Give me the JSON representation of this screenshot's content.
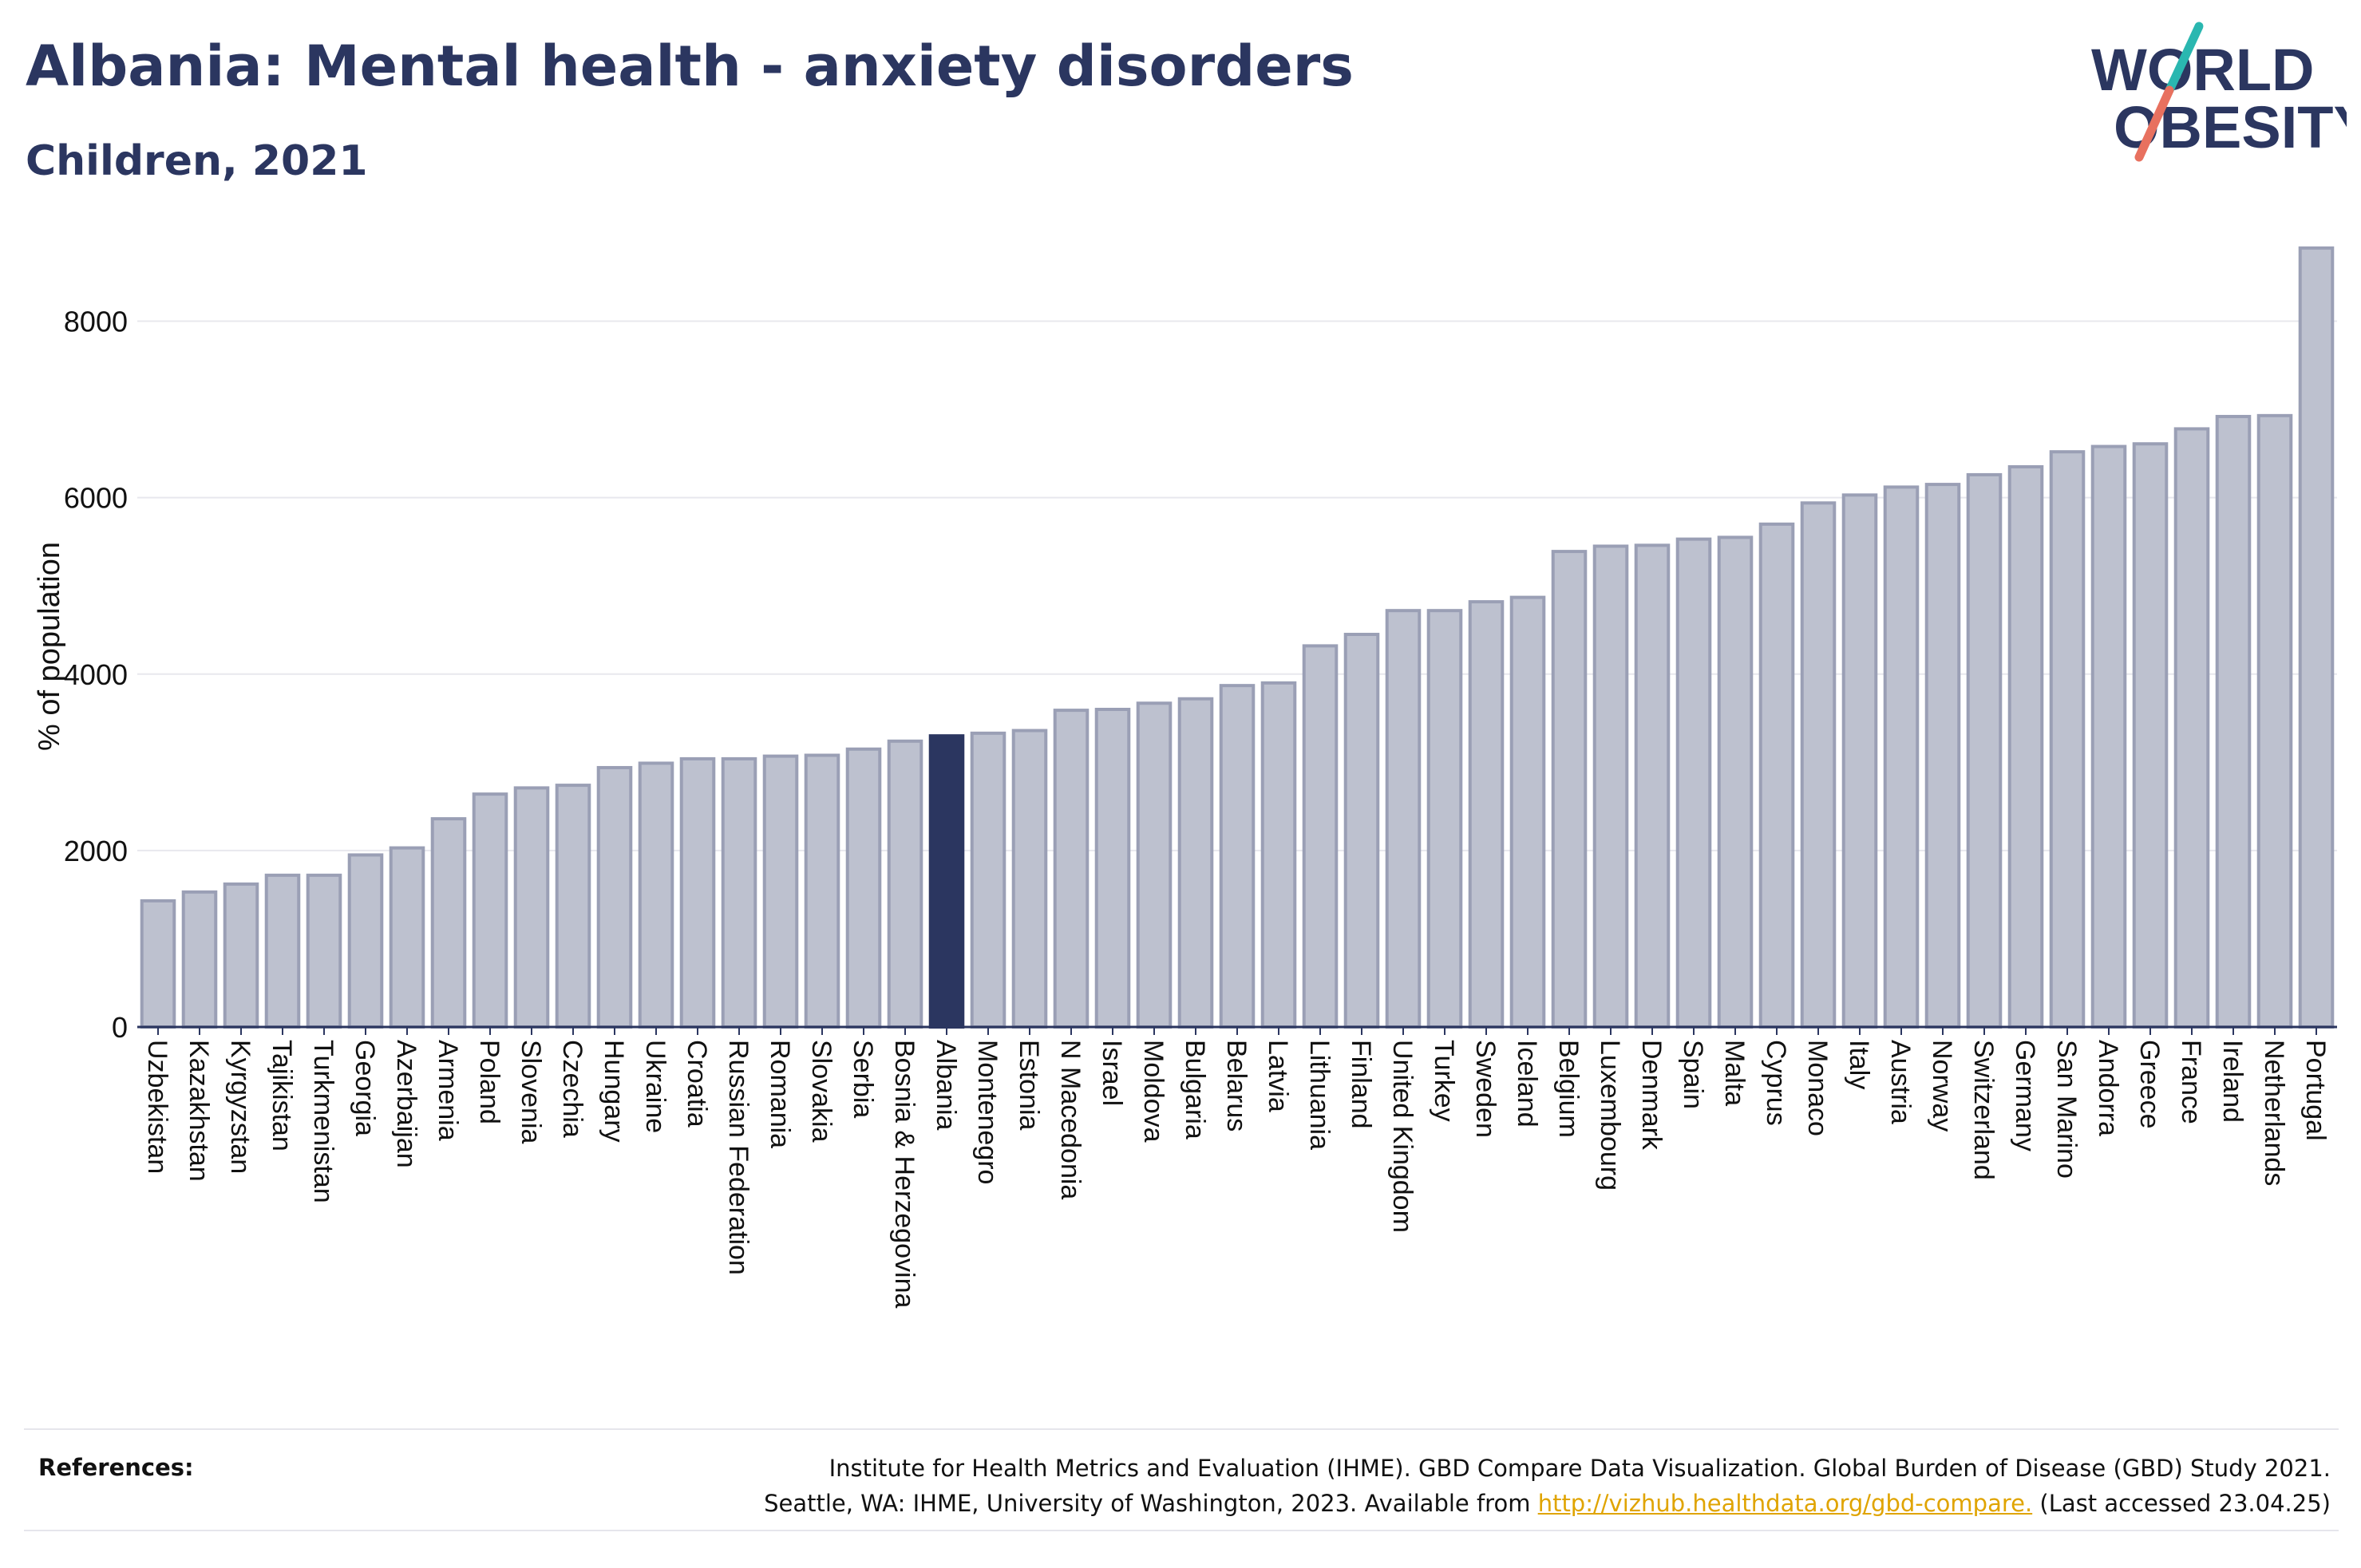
{
  "header": {
    "title": "Albania: Mental health - anxiety disorders",
    "subtitle": "Children, 2021"
  },
  "logo": {
    "line1": "WORLD",
    "line2": "OBESITY",
    "accent_teal": "#2ab7b0",
    "accent_coral": "#e8715f"
  },
  "colors": {
    "highlight_bar": "#2b3660",
    "other_bar_fill": "#bdc1cf",
    "other_bar_stroke": "#9a9fb5",
    "axis_text": "#111111",
    "grid": "#e8e8ee"
  },
  "chart_data": {
    "type": "bar",
    "title": "Albania: Mental health - anxiety disorders",
    "subtitle": "Children, 2021",
    "xlabel": "",
    "ylabel": "% of population",
    "ylim": [
      0,
      9000
    ],
    "yticks": [
      0,
      2000,
      4000,
      6000,
      8000
    ],
    "grid": true,
    "highlight": "Albania",
    "categories": [
      "Uzbekistan",
      "Kazakhstan",
      "Kyrgyzstan",
      "Tajikistan",
      "Turkmenistan",
      "Georgia",
      "Azerbaijan",
      "Armenia",
      "Poland",
      "Slovenia",
      "Czechia",
      "Hungary",
      "Ukraine",
      "Croatia",
      "Russian Federation",
      "Romania",
      "Slovakia",
      "Serbia",
      "Bosnia & Herzegovina",
      "Albania",
      "Montenegro",
      "Estonia",
      "N Macedonia",
      "Israel",
      "Moldova",
      "Bulgaria",
      "Belarus",
      "Latvia",
      "Lithuania",
      "Finland",
      "United Kingdom",
      "Turkey",
      "Sweden",
      "Iceland",
      "Belgium",
      "Luxembourg",
      "Denmark",
      "Spain",
      "Malta",
      "Cyprus",
      "Monaco",
      "Italy",
      "Austria",
      "Norway",
      "Switzerland",
      "Germany",
      "San Marino",
      "Andorra",
      "Greece",
      "France",
      "Ireland",
      "Netherlands",
      "Portugal"
    ],
    "values": [
      1430,
      1530,
      1620,
      1720,
      1720,
      1950,
      2030,
      2360,
      2640,
      2710,
      2740,
      2940,
      2990,
      3040,
      3040,
      3070,
      3080,
      3150,
      3240,
      3300,
      3330,
      3360,
      3590,
      3600,
      3670,
      3720,
      3870,
      3900,
      4320,
      4450,
      4720,
      4720,
      4820,
      4870,
      5390,
      5450,
      5460,
      5530,
      5550,
      5700,
      5940,
      6030,
      6120,
      6150,
      6260,
      6350,
      6520,
      6580,
      6610,
      6780,
      6920,
      6930,
      8830
    ]
  },
  "references": {
    "label": "References:",
    "line1": "Institute for Health Metrics and Evaluation (IHME). GBD Compare Data Visualization. Global Burden of Disease (GBD) Study 2021.",
    "line2_before": "Seattle, WA: IHME, University of Washington, 2023. Available from ",
    "link": "http://vizhub.healthdata.org/gbd-compare.",
    "line2_after": " (Last accessed 23.04.25)"
  }
}
